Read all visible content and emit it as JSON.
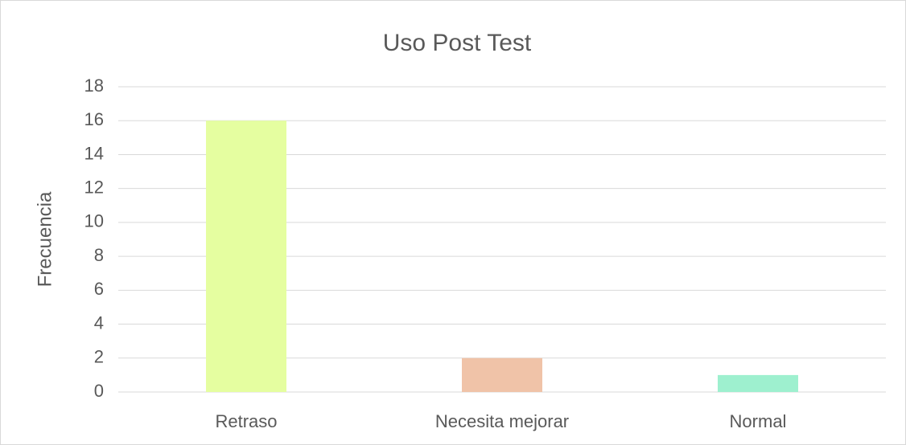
{
  "chart_data": {
    "type": "bar",
    "title": "Uso Post Test",
    "ylabel": "Frecuencia",
    "categories": [
      "Retraso",
      "Necesita mejorar",
      "Normal"
    ],
    "values": [
      16,
      2,
      1
    ],
    "colors": [
      "#e5fea0",
      "#f0c3a8",
      "#9ef0cf"
    ],
    "ylim": [
      0,
      18
    ],
    "yticks": [
      0,
      2,
      4,
      6,
      8,
      10,
      12,
      14,
      16,
      18
    ],
    "grid": true
  }
}
